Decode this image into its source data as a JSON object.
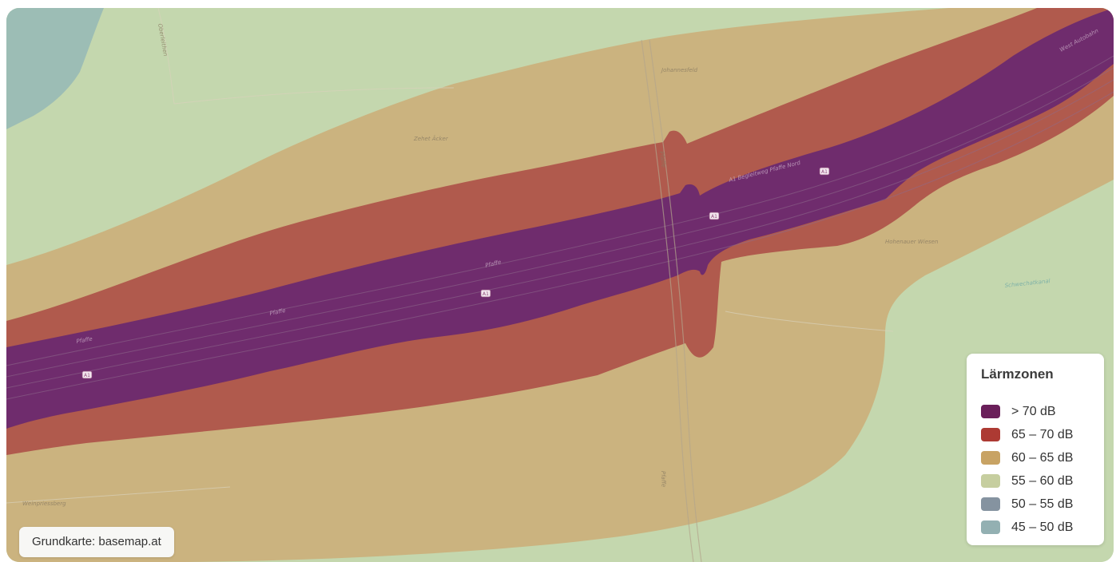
{
  "map": {
    "attribution": "Grundkarte: basemap.at",
    "zone_colors": {
      "gt70": "#6c2b6e",
      "z65_70": "#b05a4d",
      "z60_65": "#cbb37f",
      "z55_60": "#c4d7ae",
      "water": "#9cbdb5"
    },
    "labels": [
      {
        "text": "Oberleithen"
      },
      {
        "text": "Johannesfeld"
      },
      {
        "text": "Zehet Äcker"
      },
      {
        "text": "A1 Begleitweg Pfaffe Nord"
      },
      {
        "text": "Pfaffe"
      },
      {
        "text": "Pfaffe"
      },
      {
        "text": "Pfaffe"
      },
      {
        "text": "Hohenauer Wiesen"
      },
      {
        "text": "Weinpriessberg"
      },
      {
        "text": "West Autobahn"
      },
      {
        "text": "Pfaffe"
      },
      {
        "text": "Schwechatkanal"
      },
      {
        "text": "Pfaffe"
      }
    ],
    "road_shields": [
      "A1",
      "A1",
      "A1",
      "A1"
    ]
  },
  "legend": {
    "title": "Lärmzonen",
    "items": [
      {
        "label": "> 70 dB",
        "color": "#6a1f5a"
      },
      {
        "label": "65 – 70 dB",
        "color": "#ad3a33"
      },
      {
        "label": "60 – 65 dB",
        "color": "#c8a364"
      },
      {
        "label": "55 – 60 dB",
        "color": "#c6ce9f"
      },
      {
        "label": "50 – 55 dB",
        "color": "#8593a0"
      },
      {
        "label": "45 – 50 dB",
        "color": "#93b0b2"
      }
    ]
  }
}
